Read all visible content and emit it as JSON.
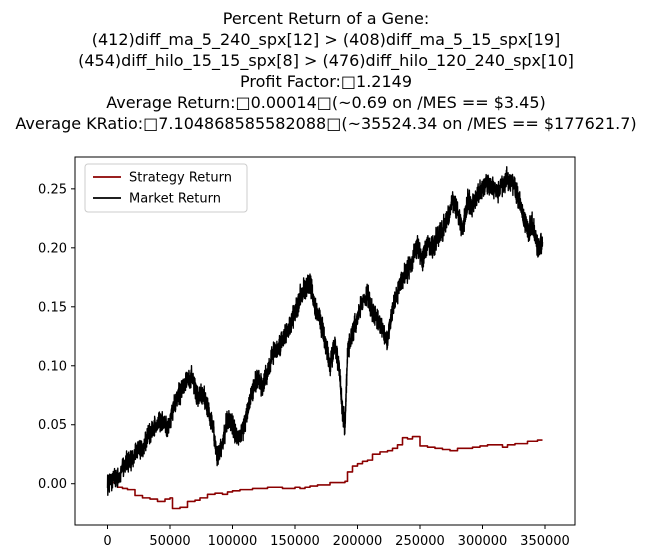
{
  "chart_data": {
    "type": "line",
    "title_lines": [
      "Percent Return of a Gene:",
      "(412)diff_ma_5_240_spx[12] > (408)diff_ma_5_15_spx[19]",
      "(454)diff_hilo_15_15_spx[8] > (476)diff_hilo_120_240_spx[10]",
      "Profit Factor:\t1.2149",
      "Average Return:\t0.00014\t(~0.69 on /MES == $3.45)",
      "Average KRatio:\t7.104868585582088\t(~35524.34 on /MES == $177621.7)"
    ],
    "xlabel": "",
    "ylabel": "",
    "xlim": [
      -26000,
      374000
    ],
    "ylim": [
      -0.035,
      0.277
    ],
    "x_ticks": [
      0,
      50000,
      100000,
      150000,
      200000,
      250000,
      300000,
      350000
    ],
    "x_tick_labels": [
      "0",
      "50000",
      "100000",
      "150000",
      "200000",
      "250000",
      "300000",
      "350000"
    ],
    "y_ticks": [
      0.0,
      0.05,
      0.1,
      0.15,
      0.2,
      0.25
    ],
    "y_tick_labels": [
      "0.00",
      "0.05",
      "0.10",
      "0.15",
      "0.20",
      "0.25"
    ],
    "legend_position": "upper-left",
    "grid": false,
    "series": [
      {
        "name": "Strategy Return",
        "color": "#8b0000",
        "style": "step",
        "points": [
          [
            0,
            0.0
          ],
          [
            4000,
            0.001
          ],
          [
            8000,
            -0.003
          ],
          [
            12000,
            -0.004
          ],
          [
            16000,
            -0.005
          ],
          [
            22000,
            -0.01
          ],
          [
            28000,
            -0.012
          ],
          [
            34000,
            -0.013
          ],
          [
            40000,
            -0.015
          ],
          [
            46000,
            -0.013
          ],
          [
            50000,
            -0.012
          ],
          [
            52000,
            -0.021
          ],
          [
            58000,
            -0.02
          ],
          [
            64000,
            -0.015
          ],
          [
            70000,
            -0.014
          ],
          [
            74000,
            -0.012
          ],
          [
            78000,
            -0.012
          ],
          [
            80000,
            -0.009
          ],
          [
            86000,
            -0.008
          ],
          [
            92000,
            -0.009
          ],
          [
            96000,
            -0.007
          ],
          [
            100000,
            -0.006
          ],
          [
            106000,
            -0.005
          ],
          [
            110000,
            -0.005
          ],
          [
            116000,
            -0.004
          ],
          [
            122000,
            -0.004
          ],
          [
            128000,
            -0.003
          ],
          [
            134000,
            -0.003
          ],
          [
            140000,
            -0.004
          ],
          [
            146000,
            -0.004
          ],
          [
            150000,
            -0.003
          ],
          [
            154000,
            -0.004
          ],
          [
            158000,
            -0.003
          ],
          [
            162000,
            -0.002
          ],
          [
            168000,
            -0.001
          ],
          [
            172000,
            -0.001
          ],
          [
            178000,
            0.001
          ],
          [
            184000,
            0.001
          ],
          [
            190000,
            0.002
          ],
          [
            192000,
            0.01
          ],
          [
            196000,
            0.015
          ],
          [
            200000,
            0.017
          ],
          [
            204000,
            0.019
          ],
          [
            208000,
            0.02
          ],
          [
            212000,
            0.025
          ],
          [
            218000,
            0.027
          ],
          [
            224000,
            0.028
          ],
          [
            228000,
            0.03
          ],
          [
            232000,
            0.033
          ],
          [
            236000,
            0.039
          ],
          [
            240000,
            0.038
          ],
          [
            244000,
            0.04
          ],
          [
            248000,
            0.04
          ],
          [
            250000,
            0.032
          ],
          [
            256000,
            0.031
          ],
          [
            262000,
            0.03
          ],
          [
            268000,
            0.029
          ],
          [
            274000,
            0.028
          ],
          [
            280000,
            0.03
          ],
          [
            286000,
            0.03
          ],
          [
            292000,
            0.031
          ],
          [
            298000,
            0.032
          ],
          [
            304000,
            0.033
          ],
          [
            310000,
            0.033
          ],
          [
            316000,
            0.031
          ],
          [
            320000,
            0.033
          ],
          [
            326000,
            0.034
          ],
          [
            332000,
            0.034
          ],
          [
            336000,
            0.036
          ],
          [
            340000,
            0.036
          ],
          [
            344000,
            0.037
          ],
          [
            348000,
            0.037
          ]
        ]
      },
      {
        "name": "Market Return",
        "color": "#000000",
        "style": "line",
        "points": [
          [
            0,
            0.0
          ],
          [
            5000,
            0.004
          ],
          [
            10000,
            0.01
          ],
          [
            15000,
            0.018
          ],
          [
            20000,
            0.02
          ],
          [
            25000,
            0.03
          ],
          [
            28000,
            0.028
          ],
          [
            32000,
            0.04
          ],
          [
            36000,
            0.044
          ],
          [
            40000,
            0.05
          ],
          [
            44000,
            0.053
          ],
          [
            48000,
            0.045
          ],
          [
            52000,
            0.06
          ],
          [
            56000,
            0.075
          ],
          [
            60000,
            0.08
          ],
          [
            64000,
            0.088
          ],
          [
            68000,
            0.09
          ],
          [
            72000,
            0.072
          ],
          [
            76000,
            0.078
          ],
          [
            80000,
            0.065
          ],
          [
            84000,
            0.05
          ],
          [
            88000,
            0.022
          ],
          [
            92000,
            0.035
          ],
          [
            96000,
            0.055
          ],
          [
            100000,
            0.05
          ],
          [
            104000,
            0.038
          ],
          [
            108000,
            0.045
          ],
          [
            112000,
            0.06
          ],
          [
            116000,
            0.08
          ],
          [
            120000,
            0.088
          ],
          [
            124000,
            0.082
          ],
          [
            128000,
            0.095
          ],
          [
            132000,
            0.11
          ],
          [
            136000,
            0.115
          ],
          [
            140000,
            0.12
          ],
          [
            144000,
            0.13
          ],
          [
            148000,
            0.14
          ],
          [
            152000,
            0.15
          ],
          [
            154000,
            0.16
          ],
          [
            158000,
            0.165
          ],
          [
            162000,
            0.17
          ],
          [
            166000,
            0.15
          ],
          [
            170000,
            0.14
          ],
          [
            174000,
            0.12
          ],
          [
            178000,
            0.1
          ],
          [
            182000,
            0.12
          ],
          [
            186000,
            0.09
          ],
          [
            188000,
            0.06
          ],
          [
            190000,
            0.05
          ],
          [
            192000,
            0.11
          ],
          [
            196000,
            0.13
          ],
          [
            200000,
            0.14
          ],
          [
            204000,
            0.155
          ],
          [
            208000,
            0.16
          ],
          [
            212000,
            0.145
          ],
          [
            216000,
            0.14
          ],
          [
            220000,
            0.13
          ],
          [
            224000,
            0.12
          ],
          [
            228000,
            0.15
          ],
          [
            232000,
            0.16
          ],
          [
            236000,
            0.175
          ],
          [
            240000,
            0.18
          ],
          [
            244000,
            0.19
          ],
          [
            248000,
            0.2
          ],
          [
            252000,
            0.19
          ],
          [
            256000,
            0.205
          ],
          [
            260000,
            0.2
          ],
          [
            264000,
            0.21
          ],
          [
            268000,
            0.215
          ],
          [
            272000,
            0.225
          ],
          [
            276000,
            0.24
          ],
          [
            280000,
            0.23
          ],
          [
            284000,
            0.215
          ],
          [
            288000,
            0.24
          ],
          [
            292000,
            0.235
          ],
          [
            296000,
            0.245
          ],
          [
            300000,
            0.25
          ],
          [
            304000,
            0.255
          ],
          [
            308000,
            0.25
          ],
          [
            312000,
            0.248
          ],
          [
            316000,
            0.252
          ],
          [
            320000,
            0.26
          ],
          [
            324000,
            0.255
          ],
          [
            328000,
            0.245
          ],
          [
            332000,
            0.23
          ],
          [
            336000,
            0.215
          ],
          [
            340000,
            0.22
          ],
          [
            344000,
            0.2
          ],
          [
            348000,
            0.205
          ]
        ]
      }
    ]
  }
}
